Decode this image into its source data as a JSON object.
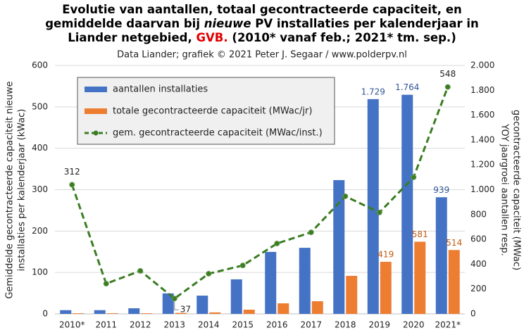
{
  "chart_data": {
    "type": "bar",
    "title": [
      [
        "Evolutie van aantallen, totaal gecontracteerde capaciteit, en"
      ],
      [
        "gemiddelde daarvan bij ",
        "nieuwe",
        " PV installaties per kalenderjaar in"
      ],
      [
        "Liander netgebied, ",
        "GVB.",
        " (2010* vanaf feb.; 2021* tm. sep.)"
      ]
    ],
    "subtitle": "Data Liander; grafiek © 2021 Peter J. Segaar / www.polderpv.nl",
    "ylabel": [
      "Gemiddelde  gecontracteerde capaciteit nieuwe",
      "installaties per kalenderjaar (kWac)"
    ],
    "y2label": [
      "YOY jaargroei aantallen resp.",
      "gecontracteerde capaciteit (MWac)"
    ],
    "categories": [
      "2010*",
      "2011",
      "2012",
      "2013",
      "2014",
      "2015",
      "2016",
      "2017",
      "2018",
      "2019",
      "2020",
      "2021*"
    ],
    "ylim": [
      0,
      600
    ],
    "yticks": [
      0,
      100,
      200,
      300,
      400,
      500,
      600
    ],
    "y2lim": [
      0,
      2000
    ],
    "y2ticks": [
      0,
      200,
      400,
      600,
      800,
      {
        "value": 1000,
        "label": "1.000"
      },
      {
        "value": 1200,
        "label": "1.200"
      },
      {
        "value": 1400,
        "label": "1.400"
      },
      {
        "value": 1600,
        "label": "1.600"
      },
      {
        "value": 1800,
        "label": "1.800"
      },
      {
        "value": 2000,
        "label": "2.000"
      }
    ],
    "grid": true,
    "legend": "upper left",
    "series": [
      {
        "name": "aantallen installaties",
        "type": "bar",
        "axis": "y2",
        "color": "#4472c4",
        "values": [
          30,
          30,
          45,
          165,
          147,
          278,
          499,
          532,
          1077,
          1729,
          1764,
          939
        ],
        "value_labels": [
          null,
          null,
          null,
          null,
          null,
          null,
          null,
          null,
          null,
          "1.729",
          "1.764",
          "939"
        ]
      },
      {
        "name": "totale gecontracteerde capaciteit (MWac/jr)",
        "type": "bar",
        "axis": "y2",
        "color": "#ed7d31",
        "values": [
          5,
          5,
          5,
          8,
          12,
          34,
          85,
          102,
          306,
          419,
          581,
          514
        ],
        "value_labels": [
          null,
          null,
          null,
          null,
          null,
          null,
          null,
          null,
          null,
          "419",
          "581",
          "514"
        ]
      },
      {
        "name": "gem. gecontracteerde capaciteit (MWac/inst.)",
        "type": "line",
        "axis": "y",
        "color": "#3a7d22",
        "values": [
          312,
          73,
          104,
          37,
          97,
          117,
          170,
          197,
          284,
          245,
          330,
          548
        ],
        "value_labels": [
          "312",
          null,
          null,
          "37",
          null,
          null,
          null,
          null,
          null,
          null,
          null,
          "548"
        ]
      }
    ]
  }
}
